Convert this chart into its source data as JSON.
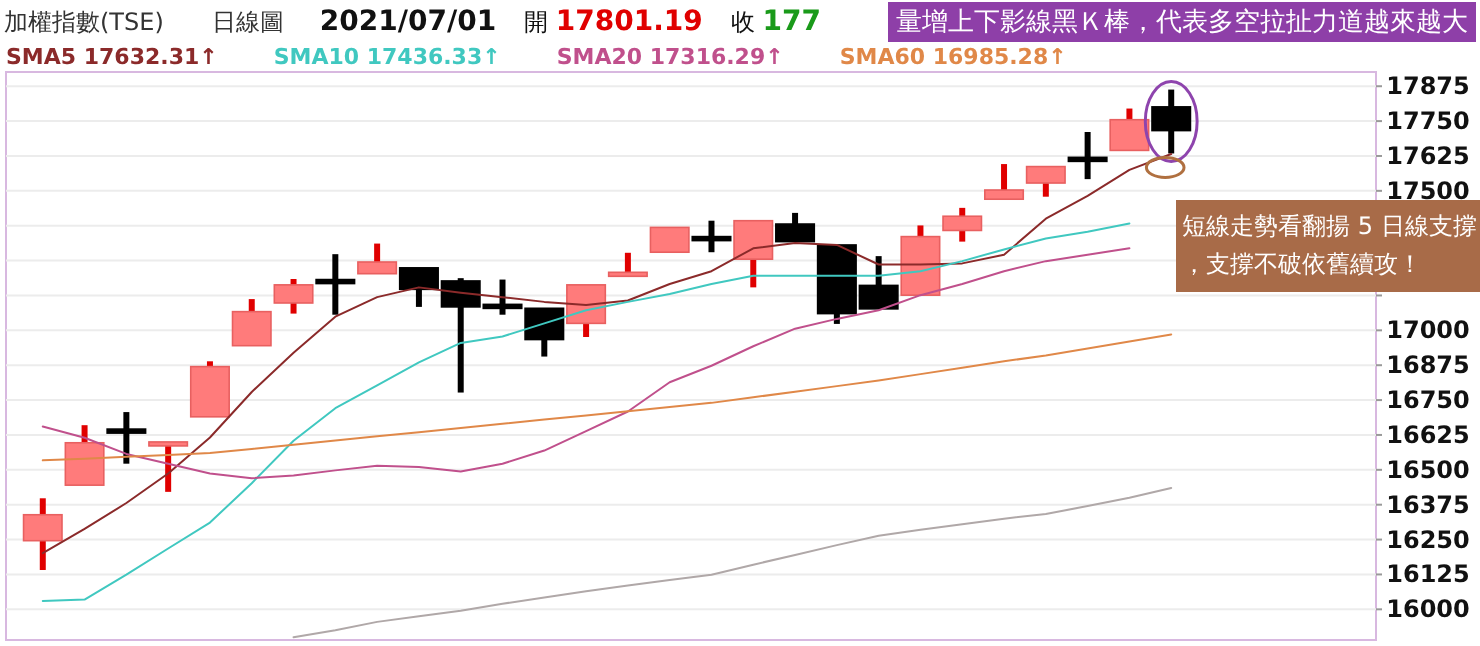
{
  "chart_data": {
    "type": "candlestick",
    "title": "加權指數(TSE)",
    "subtitle": "日線圖",
    "categories": [
      null,
      null,
      null,
      null,
      null,
      null,
      null,
      null,
      null,
      null,
      null,
      null,
      null,
      null,
      null,
      null,
      null,
      null,
      null,
      null,
      null,
      null,
      null,
      null,
      null,
      null,
      null,
      null
    ],
    "ohlc": [
      [
        16246,
        16398,
        16141,
        16339
      ],
      [
        16445,
        16660,
        16445,
        16597
      ],
      [
        16646,
        16707,
        16522,
        16642
      ],
      [
        16588,
        16600,
        16421,
        16600
      ],
      [
        16690,
        16889,
        16690,
        16870
      ],
      [
        16945,
        17112,
        16941,
        17067
      ],
      [
        17098,
        17184,
        17060,
        17163
      ],
      [
        17182,
        17273,
        17056,
        17178
      ],
      [
        17203,
        17311,
        17203,
        17245
      ],
      [
        17224,
        17224,
        17084,
        17147
      ],
      [
        17177,
        17187,
        16777,
        17084
      ],
      [
        17093,
        17182,
        17056,
        17089
      ],
      [
        17079,
        17079,
        16906,
        16967
      ],
      [
        17025,
        17163,
        16976,
        17163
      ],
      [
        17201,
        17278,
        17196,
        17208
      ],
      [
        17280,
        17369,
        17280,
        17369
      ],
      [
        17336,
        17393,
        17280,
        17329
      ],
      [
        17255,
        17393,
        17154,
        17393
      ],
      [
        17381,
        17421,
        17318,
        17318
      ],
      [
        17306,
        17306,
        17023,
        17060
      ],
      [
        17161,
        17266,
        17077,
        17077
      ],
      [
        17126,
        17376,
        17126,
        17336
      ],
      [
        17358,
        17439,
        17318,
        17409
      ],
      [
        17470,
        17596,
        17470,
        17503
      ],
      [
        17528,
        17594,
        17479,
        17587
      ],
      [
        17620,
        17711,
        17542,
        17610
      ],
      [
        17645,
        17795,
        17645,
        17755
      ],
      [
        17801,
        17863,
        17634,
        17716
      ]
    ],
    "series": [
      {
        "name": "SMA5 17632.31↑",
        "type": "line",
        "color": "#8b2a2a",
        "values": [
          16201,
          16288,
          16381,
          16487,
          16616,
          16779,
          16920,
          17049,
          17119,
          17154,
          17135,
          17119,
          17102,
          17091,
          17107,
          17166,
          17212,
          17294,
          17313,
          17306,
          17236,
          17236,
          17240,
          17271,
          17400,
          17482,
          17575,
          17632
        ]
      },
      {
        "name": "SMA10 17436.33↑",
        "type": "line",
        "color": "#40c8c0",
        "values": [
          16030,
          16035,
          16124,
          16218,
          16311,
          16452,
          16604,
          16721,
          16803,
          16885,
          16955,
          16978,
          17025,
          17072,
          17102,
          17130,
          17166,
          17196,
          17196,
          17196,
          17196,
          17212,
          17248,
          17290,
          17329,
          17353,
          17383,
          null
        ]
      },
      {
        "name": "SMA20 17316.29↑",
        "type": "line",
        "color": "#c0508c",
        "values": [
          16655,
          16615,
          16557,
          16522,
          16487,
          16470,
          16480,
          16498,
          16515,
          16510,
          16494,
          16522,
          16569,
          16639,
          16709,
          16814,
          16873,
          16943,
          17006,
          17041,
          17072,
          17126,
          17166,
          17212,
          17248,
          17271,
          17294,
          null
        ]
      },
      {
        "name": "SMA60 16985.28↑",
        "type": "line",
        "color": "#e08848",
        "values": [
          16534,
          16540,
          16547,
          16553,
          16560,
          16575,
          16590,
          16605,
          16620,
          16635,
          16650,
          16665,
          16680,
          16695,
          16710,
          16725,
          16740,
          16760,
          16780,
          16800,
          16820,
          16843,
          16866,
          16889,
          16910,
          16935,
          16960,
          16985
        ]
      },
      {
        "type": "line",
        "color": "#b0a8a8",
        "values": [
          null,
          null,
          null,
          null,
          null,
          null,
          15900,
          15925,
          15955,
          15975,
          15995,
          16020,
          16042,
          16065,
          16085,
          16105,
          16124,
          16160,
          16195,
          16230,
          16264,
          16285,
          16305,
          16325,
          16342,
          16370,
          16400,
          16435
        ]
      }
    ],
    "ylim": [
      15890,
      17926
    ],
    "yticks": [
      16000,
      16125,
      16250,
      16375,
      16500,
      16625,
      16750,
      16875,
      17000,
      {
        "value": 17125,
        "label": null
      },
      {
        "value": 17250,
        "label": null
      },
      {
        "value": 17375,
        "label": null
      },
      17500,
      17625,
      17750,
      17875
    ],
    "grid": "y",
    "legend": "top left",
    "annotations": [
      "2021/07/01",
      "開 17801.19",
      "收 177",
      "量增上下影線黑Ｋ棒，代表多空拉扯力道越來越大",
      "短線走勢看翻揚 5 日線支撐，支撐不破依舊續攻！"
    ]
  }
}
